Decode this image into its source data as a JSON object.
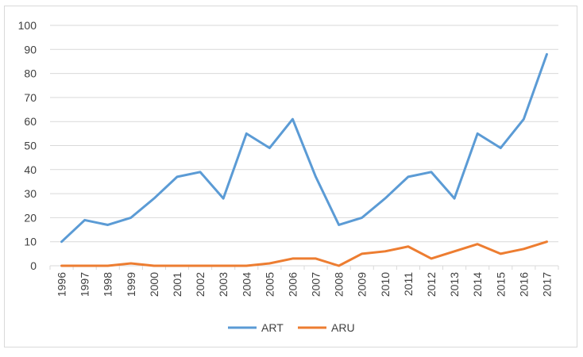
{
  "chart_data": {
    "type": "line",
    "x": [
      "1996",
      "1997",
      "1998",
      "1999",
      "2000",
      "2001",
      "2002",
      "2003",
      "2004",
      "2005",
      "2006",
      "2007",
      "2008",
      "2009",
      "2010",
      "2011",
      "2012",
      "2013",
      "2014",
      "2015",
      "2016",
      "2017"
    ],
    "series": [
      {
        "name": "ART",
        "color": "#5b9bd5",
        "values": [
          10,
          19,
          17,
          20,
          28,
          37,
          39,
          28,
          55,
          49,
          61,
          37,
          17,
          20,
          28,
          37,
          39,
          28,
          55,
          49,
          61,
          88
        ]
      },
      {
        "name": "ARU",
        "color": "#ed7d31",
        "values": [
          0,
          0,
          0,
          1,
          0,
          0,
          0,
          0,
          0,
          1,
          3,
          3,
          0,
          5,
          6,
          8,
          3,
          6,
          9,
          5,
          7,
          10
        ]
      }
    ],
    "ylim": [
      0,
      100
    ],
    "yticks": [
      0,
      10,
      20,
      30,
      40,
      50,
      60,
      70,
      80,
      90,
      100
    ],
    "grid": true,
    "legend": "bottom",
    "title": "",
    "xlabel": "",
    "ylabel": ""
  }
}
